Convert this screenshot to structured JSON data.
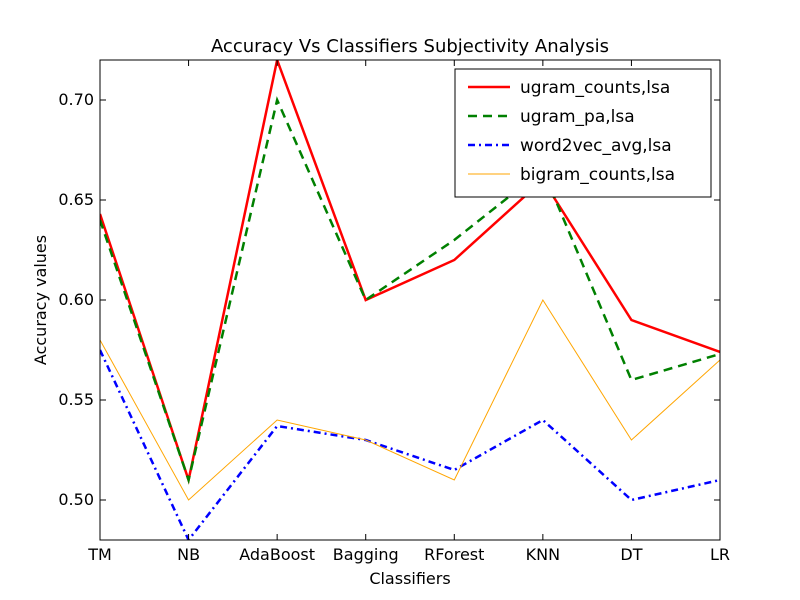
{
  "chart_data": {
    "type": "line",
    "title": "Accuracy Vs Classifiers Subjectivity Analysis",
    "xlabel": "Classifiers",
    "ylabel": "Accuracy values",
    "categories": [
      "TM",
      "NB",
      "AdaBoost",
      "Bagging",
      "RForest",
      "KNN",
      "DT",
      "LR"
    ],
    "ylim": [
      0.48,
      0.72
    ],
    "yticks": [
      0.5,
      0.55,
      0.6,
      0.65,
      0.7
    ],
    "ytick_labels": [
      "0.50",
      "0.55",
      "0.60",
      "0.65",
      "0.70"
    ],
    "grid": false,
    "legend_position": "top-right",
    "series": [
      {
        "name": "ugram_counts,lsa",
        "color": "#ff0000",
        "style": "solid",
        "width": 2.5,
        "values": [
          0.643,
          0.51,
          0.72,
          0.6,
          0.62,
          0.66,
          0.59,
          0.574
        ]
      },
      {
        "name": "ugram_pa,lsa",
        "color": "#008000",
        "style": "dashed",
        "width": 2.5,
        "values": [
          0.64,
          0.51,
          0.7,
          0.6,
          0.63,
          0.665,
          0.56,
          0.573
        ]
      },
      {
        "name": "word2vec_avg,lsa",
        "color": "#0000ff",
        "style": "dashdot",
        "width": 2.5,
        "values": [
          0.575,
          0.48,
          0.537,
          0.53,
          0.515,
          0.54,
          0.5,
          0.51
        ]
      },
      {
        "name": "bigram_counts,lsa",
        "color": "#ffa500",
        "style": "solid",
        "width": 1,
        "values": [
          0.58,
          0.5,
          0.54,
          0.53,
          0.51,
          0.6,
          0.53,
          0.57
        ]
      }
    ]
  }
}
